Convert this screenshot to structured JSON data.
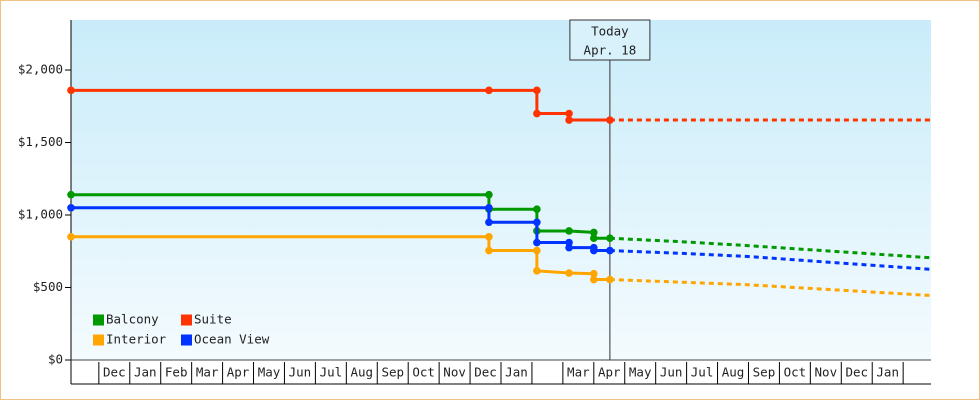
{
  "chart_data": {
    "type": "line",
    "step": true,
    "xlim": [
      -0.9,
      26.9
    ],
    "ylim": [
      0,
      2345
    ],
    "yticks": [
      {
        "value": 0,
        "label": "$0"
      },
      {
        "value": 500,
        "label": "$500"
      },
      {
        "value": 1000,
        "label": "$1,000"
      },
      {
        "value": 1500,
        "label": "$1,500"
      },
      {
        "value": 2000,
        "label": "$2,000"
      }
    ],
    "xticks": [
      {
        "value": 0.5,
        "label": "Dec"
      },
      {
        "value": 1.5,
        "label": "Jan"
      },
      {
        "value": 2.5,
        "label": "Feb"
      },
      {
        "value": 3.5,
        "label": "Mar"
      },
      {
        "value": 4.5,
        "label": "Apr"
      },
      {
        "value": 5.5,
        "label": "May"
      },
      {
        "value": 6.5,
        "label": "Jun"
      },
      {
        "value": 7.5,
        "label": "Jul"
      },
      {
        "value": 8.5,
        "label": "Aug"
      },
      {
        "value": 9.5,
        "label": "Sep"
      },
      {
        "value": 10.5,
        "label": "Oct"
      },
      {
        "value": 11.5,
        "label": "Nov"
      },
      {
        "value": 12.5,
        "label": "Dec"
      },
      {
        "value": 13.5,
        "label": "Jan"
      },
      {
        "value": 14.5,
        "label": null
      },
      {
        "value": 15.5,
        "label": "Mar"
      },
      {
        "value": 16.5,
        "label": "Apr"
      },
      {
        "value": 17.5,
        "label": "May"
      },
      {
        "value": 18.5,
        "label": "Jun"
      },
      {
        "value": 19.5,
        "label": "Jul"
      },
      {
        "value": 20.5,
        "label": "Aug"
      },
      {
        "value": 21.5,
        "label": "Sep"
      },
      {
        "value": 22.5,
        "label": "Oct"
      },
      {
        "value": 23.5,
        "label": "Nov"
      },
      {
        "value": 24.5,
        "label": "Dec"
      },
      {
        "value": 25.5,
        "label": "Jan"
      }
    ],
    "annotation": {
      "x": 16.52,
      "lines": [
        "Today",
        "Apr. 18"
      ]
    },
    "legend": "lower left",
    "series": [
      {
        "name": "Balcony",
        "color": "#009900",
        "x": [
          -0.9,
          12.61,
          12.61,
          14.16,
          14.16,
          15.2,
          16.0,
          16.0,
          16.52
        ],
        "values": [
          1140,
          1140,
          1040,
          1040,
          890,
          890,
          880,
          840,
          840
        ],
        "forecast_x": [
          16.52,
          18.9,
          20.9,
          26.9
        ],
        "forecast_values": [
          840,
          815,
          790,
          705
        ]
      },
      {
        "name": "Suite",
        "color": "#ff3300",
        "x": [
          -0.9,
          12.61,
          14.16,
          14.16,
          15.2,
          15.2,
          16.52
        ],
        "values": [
          1860,
          1860,
          1860,
          1700,
          1700,
          1655,
          1655
        ],
        "forecast_x": [
          16.52,
          26.9
        ],
        "forecast_values": [
          1655,
          1655
        ]
      },
      {
        "name": "Interior",
        "color": "#ffa500",
        "x": [
          -0.9,
          12.61,
          12.61,
          14.16,
          14.16,
          15.2,
          16.0,
          16.0,
          16.52
        ],
        "values": [
          850,
          850,
          755,
          755,
          615,
          600,
          595,
          555,
          555
        ],
        "forecast_x": [
          16.52,
          20.9,
          26.9
        ],
        "forecast_values": [
          555,
          520,
          445
        ]
      },
      {
        "name": "Ocean View",
        "color": "#0033ff",
        "x": [
          -0.9,
          12.61,
          12.61,
          14.16,
          14.16,
          15.2,
          15.2,
          16.0,
          16.0,
          16.52
        ],
        "values": [
          1050,
          1050,
          950,
          950,
          810,
          810,
          775,
          775,
          755,
          755
        ],
        "forecast_x": [
          16.52,
          18.9,
          20.9,
          26.9
        ],
        "forecast_values": [
          755,
          735,
          715,
          625
        ]
      }
    ]
  }
}
